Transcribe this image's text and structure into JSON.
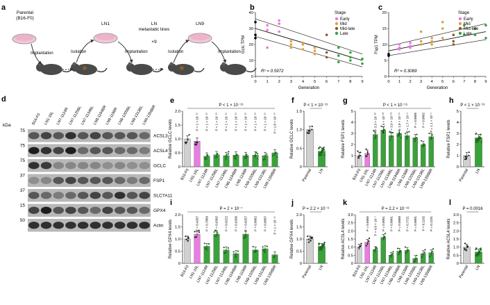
{
  "panel_a": {
    "letter": "a",
    "parental_label_line1": "Parental",
    "parental_label_line2": "(B16-F0)",
    "ln1_label": "LN1",
    "ln_lines_line1": "LN",
    "ln_lines_line2": "metastatic lines",
    "times": "×9",
    "ln9_label": "LN9",
    "implantation": "Implantation",
    "isolation": "Isolation"
  },
  "chart_data": [
    {
      "panel": "b",
      "type": "scatter",
      "ylabel": "Gclc TPM",
      "xlabel": "Generation",
      "ylim": [
        0,
        40
      ],
      "xlim": [
        0,
        9
      ],
      "yticks": [
        0,
        10,
        20,
        30,
        40
      ],
      "xticks": [
        0,
        1,
        2,
        3,
        4,
        5,
        6,
        7,
        8,
        9
      ],
      "r2_label": "R² = 0.5972",
      "legend_title": "Stage",
      "legend": [
        {
          "name": "Early",
          "color": "#e879e0"
        },
        {
          "name": "Mid",
          "color": "#d9a441"
        },
        {
          "name": "Mid-late",
          "color": "#8b5a2b"
        },
        {
          "name": "Late",
          "color": "#3aa23a"
        }
      ],
      "points": [
        {
          "x": 0,
          "y": 34,
          "stage": "Parental"
        },
        {
          "x": 0,
          "y": 26,
          "stage": "Parental"
        },
        {
          "x": 0,
          "y": 24,
          "stage": "Parental"
        },
        {
          "x": 1,
          "y": 32,
          "stage": "Early"
        },
        {
          "x": 1,
          "y": 29,
          "stage": "Early"
        },
        {
          "x": 1,
          "y": 18,
          "stage": "Early"
        },
        {
          "x": 2,
          "y": 35,
          "stage": "Early"
        },
        {
          "x": 2,
          "y": 33,
          "stage": "Early"
        },
        {
          "x": 2,
          "y": 28,
          "stage": "Early"
        },
        {
          "x": 3,
          "y": 22,
          "stage": "Mid"
        },
        {
          "x": 3,
          "y": 20,
          "stage": "Mid"
        },
        {
          "x": 3,
          "y": 18,
          "stage": "Mid"
        },
        {
          "x": 4,
          "y": 21,
          "stage": "Mid"
        },
        {
          "x": 4,
          "y": 17,
          "stage": "Mid"
        },
        {
          "x": 4,
          "y": 20,
          "stage": "Mid"
        },
        {
          "x": 5,
          "y": 18,
          "stage": "Mid"
        },
        {
          "x": 5,
          "y": 14,
          "stage": "Mid"
        },
        {
          "x": 5,
          "y": 16,
          "stage": "Mid"
        },
        {
          "x": 6,
          "y": 15,
          "stage": "Mid-late"
        },
        {
          "x": 6,
          "y": 12,
          "stage": "Mid-late"
        },
        {
          "x": 6,
          "y": 26,
          "stage": "Mid-late"
        },
        {
          "x": 7,
          "y": 18,
          "stage": "Late"
        },
        {
          "x": 7,
          "y": 13,
          "stage": "Late"
        },
        {
          "x": 7,
          "y": 9,
          "stage": "Late"
        },
        {
          "x": 8,
          "y": 12,
          "stage": "Late"
        },
        {
          "x": 8,
          "y": 10,
          "stage": "Late"
        },
        {
          "x": 8,
          "y": 15,
          "stage": "Late"
        },
        {
          "x": 9,
          "y": 11,
          "stage": "Late"
        },
        {
          "x": 9,
          "y": 8,
          "stage": "Late"
        }
      ],
      "fit": {
        "x0": 0,
        "y0": 30,
        "x1": 9,
        "y1": 10
      },
      "ci_upper": {
        "x0": 0,
        "y0": 36,
        "x1": 9,
        "y1": 14
      },
      "ci_lower": {
        "x0": 0,
        "y0": 25,
        "x1": 9,
        "y1": 6
      }
    },
    {
      "panel": "c",
      "type": "scatter",
      "ylabel": "Fsp1 TPM",
      "xlabel": "Generation",
      "ylim": [
        0,
        20
      ],
      "xlim": [
        0,
        9
      ],
      "yticks": [
        0,
        5,
        10,
        15,
        20
      ],
      "xticks": [
        0,
        1,
        2,
        3,
        4,
        5,
        6,
        7,
        8,
        9
      ],
      "r2_label": "R² = 0.3089",
      "legend_title": "Stage",
      "legend": [
        {
          "name": "Early",
          "color": "#e879e0"
        },
        {
          "name": "Mid",
          "color": "#d9a441"
        },
        {
          "name": "Mid-late",
          "color": "#8b5a2b"
        },
        {
          "name": "Late",
          "color": "#3aa23a"
        }
      ],
      "points": [
        {
          "x": 0,
          "y": 7,
          "stage": "Parental"
        },
        {
          "x": 0,
          "y": 6.5,
          "stage": "Parental"
        },
        {
          "x": 1,
          "y": 9,
          "stage": "Early"
        },
        {
          "x": 1,
          "y": 8.5,
          "stage": "Early"
        },
        {
          "x": 1,
          "y": 10,
          "stage": "Early"
        },
        {
          "x": 2,
          "y": 9.5,
          "stage": "Early"
        },
        {
          "x": 2,
          "y": 10.5,
          "stage": "Early"
        },
        {
          "x": 2,
          "y": 9,
          "stage": "Early"
        },
        {
          "x": 3,
          "y": 11,
          "stage": "Mid"
        },
        {
          "x": 3,
          "y": 10,
          "stage": "Mid"
        },
        {
          "x": 3,
          "y": 14,
          "stage": "Mid"
        },
        {
          "x": 4,
          "y": 12,
          "stage": "Mid"
        },
        {
          "x": 4,
          "y": 11,
          "stage": "Mid"
        },
        {
          "x": 4,
          "y": 10,
          "stage": "Mid"
        },
        {
          "x": 5,
          "y": 12,
          "stage": "Mid"
        },
        {
          "x": 5,
          "y": 15,
          "stage": "Mid"
        },
        {
          "x": 5,
          "y": 17,
          "stage": "Mid"
        },
        {
          "x": 6,
          "y": 13,
          "stage": "Mid-late"
        },
        {
          "x": 6,
          "y": 11,
          "stage": "Mid-late"
        },
        {
          "x": 6,
          "y": 10,
          "stage": "Mid-late"
        },
        {
          "x": 7,
          "y": 13,
          "stage": "Late"
        },
        {
          "x": 7,
          "y": 16,
          "stage": "Late"
        },
        {
          "x": 8,
          "y": 15,
          "stage": "Late"
        },
        {
          "x": 8,
          "y": 13,
          "stage": "Late"
        },
        {
          "x": 9,
          "y": 16,
          "stage": "Late"
        },
        {
          "x": 9,
          "y": 12,
          "stage": "Late"
        }
      ],
      "fit": {
        "x0": 0,
        "y0": 8,
        "x1": 9,
        "y1": 14
      },
      "ci_upper": {
        "x0": 0,
        "y0": 9.5,
        "x1": 9,
        "y1": 16.5
      },
      "ci_lower": {
        "x0": 0,
        "y0": 6.5,
        "x1": 9,
        "y1": 11.5
      }
    },
    {
      "panel": "e",
      "type": "bar",
      "ylabel": "Relative GCLC levels",
      "ylim": [
        0,
        2.0
      ],
      "yticks": [
        "0",
        "0.5",
        "1.0",
        "1.5",
        "2.0"
      ],
      "top_p": "P < 1 × 10⁻¹⁵",
      "categories": [
        "B16-F0",
        "LN1-16L",
        "LN7-1124R",
        "LN7-1125BL",
        "LN7-1134BL",
        "LN8-1194BR",
        "LN8-1198R",
        "LN8-1205BL",
        "LN9-1313BL",
        "LN9-1358BR"
      ],
      "values": [
        1.0,
        0.92,
        0.38,
        0.43,
        0.4,
        0.42,
        0.4,
        0.42,
        0.4,
        0.5
      ],
      "colors": [
        "#d0d0d0",
        "#e97de1",
        "#3aa23a",
        "#3aa23a",
        "#3aa23a",
        "#3aa23a",
        "#3aa23a",
        "#3aa23a",
        "#3aa23a",
        "#3aa23a"
      ],
      "pvals": [
        "",
        "P < 1 × 10⁻¹⁵",
        "P < 1 × 10⁻¹⁵",
        "P < 1 × 10⁻¹⁵",
        "P < 1 × 10⁻¹⁵",
        "P < 1 × 10⁻¹⁵",
        "P < 1 × 10⁻¹⁵",
        "P < 1 × 10⁻¹⁵",
        "P < 1 × 10⁻¹⁵",
        "P = 1.8 × 10⁻¹⁴"
      ]
    },
    {
      "panel": "f",
      "type": "bar",
      "ylabel": "Relative GCLC levels",
      "ylim": [
        0,
        1.5
      ],
      "yticks": [
        "0",
        "0.5",
        "1.0",
        "1.5"
      ],
      "top_p": "P < 1 × 10⁻¹⁵",
      "categories": [
        "Parental",
        "LN"
      ],
      "values": [
        1.0,
        0.42
      ],
      "colors": [
        "#d0d0d0",
        "#3aa23a"
      ]
    },
    {
      "panel": "g",
      "type": "bar",
      "ylabel": "Relative FSP1 levels",
      "ylim": [
        0,
        5
      ],
      "yticks": [
        "0",
        "1",
        "2",
        "3",
        "4",
        "5"
      ],
      "top_p": "P < 1 × 10⁻¹⁵",
      "categories": [
        "B16-F0",
        "LN1-16L",
        "LN7-1124R",
        "LN7-1125BL",
        "LN7-1134BL",
        "LN8-1194BR",
        "LN8-1198R",
        "LN8-1205BL",
        "LN9-1313BL",
        "LN9-1358BR"
      ],
      "values": [
        1.0,
        1.2,
        2.9,
        3.3,
        2.8,
        3.0,
        2.8,
        2.6,
        2.0,
        2.7
      ],
      "colors": [
        "#d0d0d0",
        "#e97de1",
        "#3aa23a",
        "#3aa23a",
        "#3aa23a",
        "#3aa23a",
        "#3aa23a",
        "#3aa23a",
        "#3aa23a",
        "#3aa23a"
      ],
      "pvals": [
        "",
        "",
        "P = 3.3 × 10⁻¹⁰",
        "P = 1.5 × 10⁻¹³",
        "P = 3.9 × 10⁻¹³",
        "P = 1.8 × 10⁻¹¹",
        "P = 1.7 × 10⁻⁹",
        "P = 0.0005",
        "P = 0.0002",
        "P = 1.1 × 10⁻⁶"
      ]
    },
    {
      "panel": "h",
      "type": "bar",
      "ylabel": "Relative FSP1 levels",
      "ylim": [
        0,
        5
      ],
      "yticks": [
        "0",
        "1",
        "2",
        "3",
        "4",
        "5"
      ],
      "top_p": "P < 1 × 10⁻¹⁵",
      "categories": [
        "Parental",
        "LN"
      ],
      "values": [
        1.0,
        2.6
      ],
      "colors": [
        "#d0d0d0",
        "#3aa23a"
      ]
    },
    {
      "panel": "i",
      "type": "bar",
      "ylabel": "Relative GPX4 levels",
      "ylim": [
        0,
        2.0
      ],
      "yticks": [
        "0",
        "0.5",
        "1.0",
        "1.5",
        "2.0"
      ],
      "top_p": "P = 2 × 10⁻⁷",
      "categories": [
        "B16-F0",
        "LN1-16L",
        "LN7-1124R",
        "LN7-1125BL",
        "LN7-1134BL",
        "LN8-1194BR",
        "LN8-1198R",
        "LN8-1205BL",
        "LN9-1313BL",
        "LN9-1358BR"
      ],
      "values": [
        1.0,
        1.2,
        0.7,
        1.2,
        0.55,
        0.4,
        1.2,
        0.55,
        0.6,
        0.35
      ],
      "colors": [
        "#d0d0d0",
        "#e97de1",
        "#3aa23a",
        "#3aa23a",
        "#3aa23a",
        "#3aa23a",
        "#3aa23a",
        "#3aa23a",
        "#3aa23a",
        "#3aa23a"
      ],
      "pvals": [
        "",
        "P = 0.4207",
        "P = 0.7860",
        "P = 0.0302",
        "P = 0.0222",
        "P = 0.9206",
        "P = 0.0257",
        "P = 0.0062",
        "P = 0.0007",
        "P < 1 × 10⁻¹⁵"
      ]
    },
    {
      "panel": "j",
      "type": "bar",
      "ylabel": "Relative GPX4 levels",
      "ylim": [
        0,
        2.0
      ],
      "yticks": [
        "0",
        "0.5",
        "1.0",
        "1.5",
        "2.0"
      ],
      "top_p": "P = 2.2 × 10⁻⁶",
      "categories": [
        "Parental",
        "LN"
      ],
      "values": [
        1.0,
        0.7
      ],
      "colors": [
        "#d0d0d0",
        "#3aa23a"
      ]
    },
    {
      "panel": "k",
      "type": "bar",
      "ylabel": "Relative ACSL4 levels",
      "ylim": [
        0,
        3.0
      ],
      "yticks": [
        "0",
        "0.5",
        "1.0",
        "1.5",
        "2.0",
        "2.5",
        "3.0"
      ],
      "top_p": "P = 2.2 × 10⁻¹³",
      "categories": [
        "B16-F0",
        "LN1-16L",
        "LN7-1124R",
        "LN7-1125BL",
        "LN7-1134BL",
        "LN8-1194BR",
        "LN8-1198R",
        "LN8-1205BL",
        "LN9-1313BL",
        "LN9-1358BR"
      ],
      "values": [
        1.0,
        1.3,
        0.85,
        1.6,
        0.5,
        0.75,
        0.8,
        0.3,
        0.6,
        0.65
      ],
      "colors": [
        "#d0d0d0",
        "#e97de1",
        "#3aa23a",
        "#3aa23a",
        "#3aa23a",
        "#3aa23a",
        "#3aa23a",
        "#3aa23a",
        "#3aa23a",
        "#3aa23a"
      ],
      "pvals": [
        "",
        "P = 0.6665",
        "P = 4.8 × 10⁻⁷",
        "P = 0.0051",
        "P = 0.0001",
        "P = 0.0688",
        "P = 0.7721",
        "P = 0.0001",
        "P = 0.1102",
        "P = 0.1231"
      ]
    },
    {
      "panel": "l",
      "type": "bar",
      "ylabel": "Relative ACSL4 levels",
      "ylim": [
        0,
        3.0
      ],
      "yticks": [
        "0",
        "0.5",
        "1.0",
        "1.5",
        "2.0",
        "2.5",
        "3.0"
      ],
      "top_p": "P = 0.0016",
      "categories": [
        "Parental",
        "LN"
      ],
      "values": [
        1.0,
        0.7
      ],
      "colors": [
        "#d0d0d0",
        "#3aa23a"
      ]
    }
  ],
  "panel_d": {
    "letter": "d",
    "kda": "kDa",
    "lanes": [
      "B16-F0",
      "LN1-16L",
      "LN7-1124R",
      "LN7-1125BL",
      "LN7-1134BL",
      "LN8-1194BR",
      "LN8-1198R",
      "LN8-1205BL",
      "LN9-1313BL",
      "LN9-1358BR"
    ],
    "blots": [
      {
        "name": "ACSL3",
        "kda": "75"
      },
      {
        "name": "ACSL4",
        "kda": "75"
      },
      {
        "name": "GCLC",
        "kda": "75"
      },
      {
        "name": "FSP1",
        "kda": "37"
      },
      {
        "name": "SLC7A11",
        "kda": "37"
      },
      {
        "name": "GPX4",
        "kda": "15"
      },
      {
        "name": "Actin",
        "kda": "50"
      }
    ],
    "intensities": [
      [
        0.6,
        0.7,
        0.6,
        0.8,
        0.6,
        0.7,
        0.6,
        0.6,
        0.6,
        0.5
      ],
      [
        0.9,
        0.8,
        0.7,
        0.9,
        0.5,
        0.6,
        0.6,
        0.5,
        0.5,
        0.4
      ],
      [
        0.8,
        0.75,
        0.35,
        0.35,
        0.35,
        0.35,
        0.3,
        0.35,
        0.3,
        0.3
      ],
      [
        0.3,
        0.35,
        0.6,
        0.7,
        0.6,
        0.6,
        0.6,
        0.5,
        0.4,
        0.5
      ],
      [
        0.6,
        0.5,
        0.4,
        0.5,
        0.6,
        0.7,
        0.6,
        0.8,
        0.6,
        0.7
      ],
      [
        0.7,
        0.9,
        0.6,
        0.7,
        0.6,
        0.5,
        0.7,
        0.6,
        0.6,
        0.5
      ],
      [
        0.8,
        0.8,
        0.8,
        0.8,
        0.8,
        0.8,
        0.8,
        0.8,
        0.8,
        0.8
      ]
    ]
  }
}
